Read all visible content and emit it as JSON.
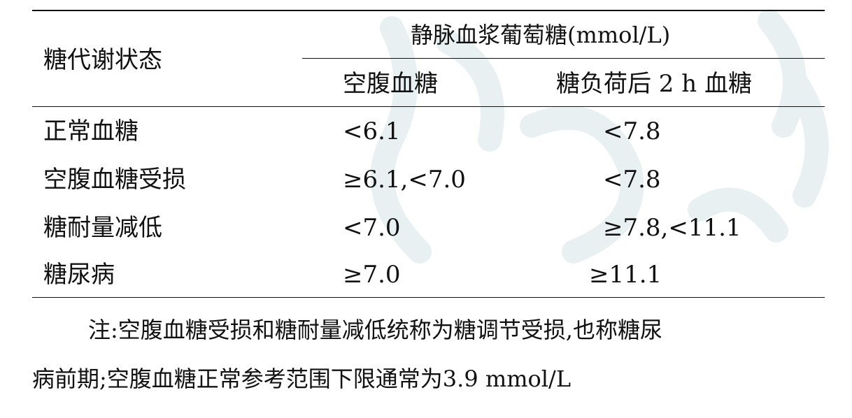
{
  "table": {
    "header": {
      "row_header": "糖代谢状态",
      "group_header": "静脉血浆葡萄糖(mmol/L)",
      "columns": [
        "空腹血糖",
        "糖负荷后 2 h 血糖"
      ]
    },
    "rows": [
      {
        "status": "正常血糖",
        "fasting": "<6.1",
        "post_load": "<7.8"
      },
      {
        "status": "空腹血糖受损",
        "fasting": "≥6.1,<7.0",
        "post_load": "<7.8"
      },
      {
        "status": "糖耐量减低",
        "fasting": "<7.0",
        "post_load": "≥7.8,<11.1"
      },
      {
        "status": "糖尿病",
        "fasting": "≥7.0",
        "post_load": "≥11.1"
      }
    ]
  },
  "note": {
    "line1": "注:空腹血糖受损和糖耐量减低统称为糖调节受损,也称糖尿",
    "line2": "病前期;空腹血糖正常参考范围下限通常为3.9 mmol/L"
  },
  "colors": {
    "text": "#111111",
    "watermark": "#e6eef0"
  }
}
